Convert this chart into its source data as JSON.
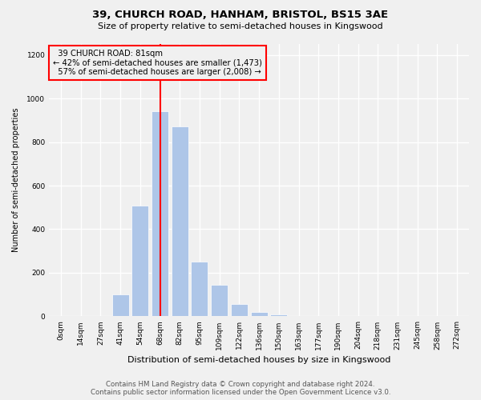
{
  "title1": "39, CHURCH ROAD, HANHAM, BRISTOL, BS15 3AE",
  "title2": "Size of property relative to semi-detached houses in Kingswood",
  "xlabel": "Distribution of semi-detached houses by size in Kingswood",
  "ylabel": "Number of semi-detached properties",
  "bin_labels": [
    "0sqm",
    "14sqm",
    "27sqm",
    "41sqm",
    "54sqm",
    "68sqm",
    "82sqm",
    "95sqm",
    "109sqm",
    "122sqm",
    "136sqm",
    "150sqm",
    "163sqm",
    "177sqm",
    "190sqm",
    "204sqm",
    "218sqm",
    "231sqm",
    "245sqm",
    "258sqm",
    "272sqm"
  ],
  "bar_values": [
    0,
    0,
    0,
    100,
    510,
    940,
    870,
    250,
    145,
    55,
    20,
    8,
    3,
    2,
    1,
    0,
    0,
    0,
    0,
    0,
    0
  ],
  "bar_color": "#aec6e8",
  "property_bin_index": 5,
  "property_label": "39 CHURCH ROAD: 81sqm",
  "smaller_pct": "42%",
  "smaller_n": "1,473",
  "larger_pct": "57%",
  "larger_n": "2,008",
  "annotation_line_color": "red",
  "annotation_box_edge_color": "red",
  "ylim": [
    0,
    1250
  ],
  "yticks": [
    0,
    200,
    400,
    600,
    800,
    1000,
    1200
  ],
  "footer1": "Contains HM Land Registry data © Crown copyright and database right 2024.",
  "footer2": "Contains public sector information licensed under the Open Government Licence v3.0.",
  "bg_color": "#f0f0f0"
}
